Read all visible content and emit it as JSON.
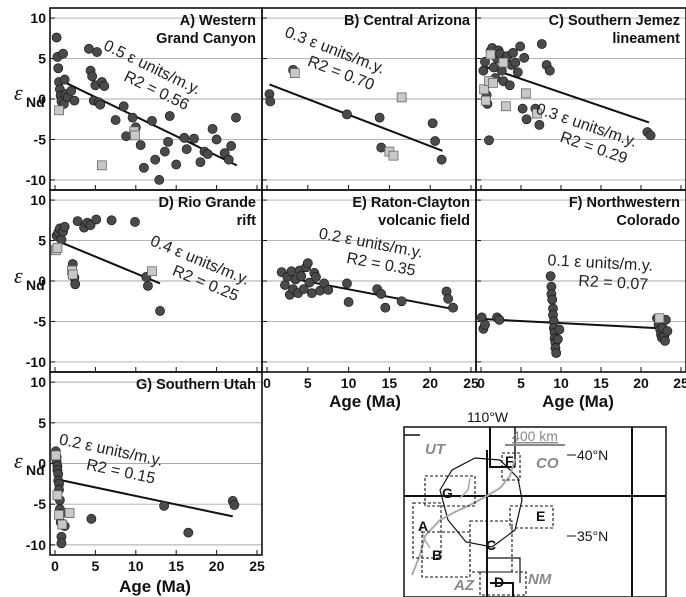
{
  "chart_data": [
    {
      "id": "A",
      "type": "scatter",
      "title": [
        "A) Western",
        "Grand Canyon"
      ],
      "annotation": [
        "0.5 ε units/m.y.",
        "R2 = 0.56"
      ],
      "xlim": [
        0,
        25
      ],
      "ylim": [
        -11,
        11
      ],
      "trend": [
        [
          0.5,
          2.4
        ],
        [
          22.5,
          -8.2
        ]
      ],
      "circles": [
        [
          0.2,
          7.6
        ],
        [
          0.3,
          5.2
        ],
        [
          0.4,
          3.8
        ],
        [
          0.5,
          2.1
        ],
        [
          0.6,
          1.2
        ],
        [
          0.7,
          0.4
        ],
        [
          0.8,
          -0.3
        ],
        [
          1.0,
          5.6
        ],
        [
          1.1,
          -0.6
        ],
        [
          1.2,
          2.4
        ],
        [
          1.3,
          0.6
        ],
        [
          1.6,
          0.2
        ],
        [
          2.0,
          1.0
        ],
        [
          2.4,
          -0.2
        ],
        [
          4.2,
          6.2
        ],
        [
          4.4,
          3.5
        ],
        [
          4.6,
          2.8
        ],
        [
          4.8,
          -0.2
        ],
        [
          5.0,
          1.7
        ],
        [
          5.2,
          5.8
        ],
        [
          5.4,
          -0.4
        ],
        [
          5.6,
          -0.7
        ],
        [
          5.8,
          2.1
        ],
        [
          6.1,
          1.6
        ],
        [
          7.5,
          -2.6
        ],
        [
          8.5,
          -0.9
        ],
        [
          8.8,
          -4.6
        ],
        [
          9.6,
          -2.3
        ],
        [
          10.0,
          -3.5
        ],
        [
          10.6,
          -5.7
        ],
        [
          11.0,
          -8.5
        ],
        [
          12.0,
          -2.7
        ],
        [
          12.4,
          -7.5
        ],
        [
          12.9,
          -10.0
        ],
        [
          13.6,
          -6.5
        ],
        [
          14.0,
          -5.3
        ],
        [
          14.2,
          -2.1
        ],
        [
          15.0,
          -8.1
        ],
        [
          16.0,
          -4.8
        ],
        [
          16.3,
          -6.2
        ],
        [
          17.2,
          -4.9
        ],
        [
          18.0,
          -7.8
        ],
        [
          18.5,
          -6.5
        ],
        [
          18.9,
          -6.8
        ],
        [
          19.5,
          -3.7
        ],
        [
          20.0,
          -5.0
        ],
        [
          21.0,
          -6.7
        ],
        [
          21.5,
          -7.5
        ],
        [
          21.8,
          -5.8
        ],
        [
          22.4,
          -2.3
        ]
      ],
      "squares": [
        [
          0.5,
          -1.4
        ],
        [
          5.8,
          -8.2
        ],
        [
          9.8,
          -4.0
        ],
        [
          9.9,
          -4.5
        ]
      ]
    },
    {
      "id": "B",
      "type": "scatter",
      "title": [
        "B) Central Arizona"
      ],
      "annotation": [
        "0.3 ε units/m.y.",
        "R2 = 0.70"
      ],
      "xlim": [
        0,
        25
      ],
      "ylim": [
        -11,
        11
      ],
      "trend": [
        [
          0.3,
          1.8
        ],
        [
          21.5,
          -6.4
        ]
      ],
      "circles": [
        [
          0.3,
          0.6
        ],
        [
          0.4,
          -0.3
        ],
        [
          3.2,
          3.6
        ],
        [
          9.8,
          -1.9
        ],
        [
          13.8,
          -2.3
        ],
        [
          14.0,
          -6.0
        ],
        [
          20.3,
          -3.0
        ],
        [
          20.6,
          -5.2
        ],
        [
          21.4,
          -7.5
        ]
      ],
      "squares": [
        [
          3.4,
          3.2
        ],
        [
          15.0,
          -6.5
        ],
        [
          15.5,
          -7.0
        ],
        [
          16.5,
          0.2
        ]
      ]
    },
    {
      "id": "C",
      "type": "scatter",
      "title": [
        "C) Southern Jemez",
        "lineament"
      ],
      "annotation": [
        "0.3 ε units/m.y.",
        "R2 = 0.29"
      ],
      "xlim": [
        0,
        25
      ],
      "ylim": [
        -11,
        11
      ],
      "trend": [
        [
          0.5,
          4.0
        ],
        [
          21.0,
          -2.9
        ]
      ],
      "circles": [
        [
          0.3,
          3.5
        ],
        [
          0.5,
          4.6
        ],
        [
          0.7,
          0.5
        ],
        [
          0.8,
          -0.6
        ],
        [
          1.0,
          -5.1
        ],
        [
          1.2,
          5.9
        ],
        [
          1.4,
          6.3
        ],
        [
          1.6,
          3.9
        ],
        [
          1.8,
          2.6
        ],
        [
          2.0,
          5.0
        ],
        [
          2.2,
          6.0
        ],
        [
          2.4,
          5.6
        ],
        [
          2.6,
          3.5
        ],
        [
          2.8,
          2.2
        ],
        [
          3.0,
          4.9
        ],
        [
          3.3,
          5.3
        ],
        [
          3.6,
          1.7
        ],
        [
          3.8,
          4.2
        ],
        [
          4.0,
          5.7
        ],
        [
          4.3,
          4.5
        ],
        [
          4.6,
          3.3
        ],
        [
          4.9,
          6.5
        ],
        [
          5.2,
          -1.2
        ],
        [
          5.4,
          5.1
        ],
        [
          5.7,
          -2.5
        ],
        [
          6.8,
          -1.2
        ],
        [
          7.3,
          -3.2
        ],
        [
          7.6,
          6.8
        ],
        [
          8.2,
          4.2
        ],
        [
          8.6,
          3.5
        ],
        [
          20.8,
          -4.1
        ],
        [
          21.2,
          -4.5
        ]
      ],
      "squares": [
        [
          0.4,
          1.2
        ],
        [
          0.6,
          -0.2
        ],
        [
          1.0,
          2.2
        ],
        [
          1.2,
          5.5
        ],
        [
          1.5,
          2.0
        ],
        [
          2.8,
          4.5
        ],
        [
          3.1,
          -0.9
        ],
        [
          5.6,
          0.7
        ],
        [
          7.0,
          -1.8
        ]
      ]
    },
    {
      "id": "D",
      "type": "scatter",
      "title": [
        "D) Rio Grande",
        "rift"
      ],
      "annotation": [
        "0.4 ε units/m.y.",
        "R2 = 0.25"
      ],
      "xlim": [
        0,
        25
      ],
      "ylim": [
        -11,
        11
      ],
      "trend": [
        [
          0.2,
          5.0
        ],
        [
          13.0,
          -0.3
        ]
      ],
      "circles": [
        [
          0.2,
          5.6
        ],
        [
          0.4,
          6.0
        ],
        [
          0.6,
          6.5
        ],
        [
          0.8,
          5.1
        ],
        [
          1.0,
          6.1
        ],
        [
          1.2,
          6.7
        ],
        [
          2.2,
          2.1
        ],
        [
          2.4,
          0.4
        ],
        [
          2.5,
          -0.4
        ],
        [
          2.8,
          7.4
        ],
        [
          3.6,
          6.6
        ],
        [
          4.0,
          7.2
        ],
        [
          4.4,
          6.9
        ],
        [
          5.1,
          7.6
        ],
        [
          7.0,
          7.5
        ],
        [
          9.9,
          7.3
        ],
        [
          11.3,
          0.5
        ],
        [
          11.5,
          -0.6
        ],
        [
          13.0,
          -3.7
        ]
      ],
      "squares": [
        [
          0.1,
          3.8
        ],
        [
          0.3,
          4.1
        ],
        [
          2.1,
          1.3
        ],
        [
          2.2,
          0.8
        ],
        [
          12.0,
          1.2
        ]
      ]
    },
    {
      "id": "E",
      "type": "scatter",
      "title": [
        "E) Raton-Clayton",
        "volcanic field"
      ],
      "annotation": [
        "0.2 ε units/m.y.",
        "R2 = 0.35"
      ],
      "xlim": [
        0,
        25
      ],
      "ylim": [
        -11,
        11
      ],
      "trend": [
        [
          2.0,
          0.5
        ],
        [
          23.0,
          -3.5
        ]
      ],
      "circles": [
        [
          1.8,
          1.1
        ],
        [
          2.2,
          -0.5
        ],
        [
          2.5,
          0.5
        ],
        [
          2.8,
          -1.7
        ],
        [
          3.0,
          1.2
        ],
        [
          3.2,
          -1.0
        ],
        [
          3.5,
          0.2
        ],
        [
          3.8,
          -1.5
        ],
        [
          4.0,
          1.3
        ],
        [
          4.2,
          0.6
        ],
        [
          4.5,
          -1.0
        ],
        [
          4.8,
          1.7
        ],
        [
          5.0,
          2.2
        ],
        [
          5.2,
          -0.2
        ],
        [
          5.5,
          -1.5
        ],
        [
          5.8,
          1.0
        ],
        [
          6.0,
          0.5
        ],
        [
          6.5,
          -1.2
        ],
        [
          7.0,
          -0.3
        ],
        [
          7.5,
          -1.1
        ],
        [
          9.8,
          -0.3
        ],
        [
          10.0,
          -2.6
        ],
        [
          13.5,
          -1.0
        ],
        [
          14.0,
          -1.6
        ],
        [
          14.5,
          -3.3
        ],
        [
          16.5,
          -2.5
        ],
        [
          22.0,
          -1.3
        ],
        [
          22.2,
          -2.2
        ],
        [
          22.8,
          -3.3
        ]
      ],
      "squares": []
    },
    {
      "id": "F",
      "type": "scatter",
      "title": [
        "F) Northwestern",
        "Colorado"
      ],
      "annotation": [
        "0.1 ε units/m.y.",
        "R2 = 0.07"
      ],
      "xlim": [
        0,
        25
      ],
      "ylim": [
        -11,
        11
      ],
      "trend": [
        [
          0.2,
          -4.7
        ],
        [
          23.5,
          -5.9
        ]
      ],
      "circles": [
        [
          0.1,
          -4.5
        ],
        [
          0.3,
          -5.9
        ],
        [
          0.5,
          -5.4
        ],
        [
          2.0,
          -4.5
        ],
        [
          2.3,
          -4.8
        ],
        [
          8.7,
          0.6
        ],
        [
          8.8,
          -0.7
        ],
        [
          8.8,
          -1.6
        ],
        [
          8.9,
          -2.3
        ],
        [
          9.0,
          -3.4
        ],
        [
          9.0,
          -4.2
        ],
        [
          9.1,
          -5.0
        ],
        [
          9.1,
          -5.8
        ],
        [
          9.2,
          -6.4
        ],
        [
          9.2,
          -7.1
        ],
        [
          9.3,
          -7.6
        ],
        [
          9.3,
          -8.3
        ],
        [
          9.4,
          -8.9
        ],
        [
          9.6,
          -7.2
        ],
        [
          9.8,
          -6.0
        ],
        [
          22.0,
          -4.6
        ],
        [
          22.2,
          -5.4
        ],
        [
          22.4,
          -6.0
        ],
        [
          22.5,
          -6.6
        ],
        [
          22.6,
          -7.0
        ],
        [
          22.7,
          -5.8
        ],
        [
          22.9,
          -6.8
        ],
        [
          23.0,
          -7.4
        ],
        [
          23.1,
          -4.8
        ],
        [
          23.3,
          -6.2
        ]
      ],
      "squares": [
        [
          22.3,
          -4.6
        ]
      ]
    },
    {
      "id": "G",
      "type": "scatter",
      "title": [
        "G) Southern Utah"
      ],
      "annotation": [
        "0.2 ε units/m.y.",
        "R2 = 0.15"
      ],
      "xlim": [
        0,
        25
      ],
      "ylim": [
        -11,
        11
      ],
      "trend": [
        [
          0.5,
          -2.0
        ],
        [
          22.0,
          -6.5
        ]
      ],
      "circles": [
        [
          0.1,
          1.5
        ],
        [
          0.2,
          0.8
        ],
        [
          0.2,
          0.2
        ],
        [
          0.3,
          -0.3
        ],
        [
          0.3,
          -0.8
        ],
        [
          0.4,
          -1.3
        ],
        [
          0.4,
          -2.1
        ],
        [
          0.5,
          -2.5
        ],
        [
          0.5,
          -3.2
        ],
        [
          0.6,
          -4.5
        ],
        [
          0.6,
          -5.6
        ],
        [
          0.7,
          -6.2
        ],
        [
          0.7,
          -7.2
        ],
        [
          0.8,
          -9.0
        ],
        [
          0.8,
          -9.8
        ],
        [
          1.2,
          -7.7
        ],
        [
          4.5,
          -6.8
        ],
        [
          13.5,
          -5.2
        ],
        [
          16.5,
          -8.5
        ],
        [
          22.0,
          -4.6
        ],
        [
          22.2,
          -5.1
        ]
      ],
      "squares": [
        [
          0.1,
          1.0
        ],
        [
          0.3,
          -3.9
        ],
        [
          0.5,
          -6.3
        ],
        [
          0.9,
          -7.5
        ],
        [
          1.8,
          -6.1
        ]
      ]
    }
  ],
  "axes": {
    "ylabel_main": "ε",
    "ylabel_sub": "Nd",
    "xlabel": "Age (Ma)",
    "yticks": [
      "10",
      "5",
      "0",
      "-5",
      "-10"
    ],
    "xticks": [
      "0",
      "5",
      "10",
      "15",
      "20",
      "25"
    ]
  },
  "map": {
    "lon_label": "110°W",
    "lat_labels": [
      "40°N",
      "35°N"
    ],
    "scale_label": "400 km",
    "states": [
      "UT",
      "CO",
      "AZ",
      "NM"
    ],
    "region_labels": [
      "A",
      "B",
      "C",
      "D",
      "E",
      "F",
      "G"
    ]
  },
  "colors": {
    "circle_fill": "#4a4a4a",
    "square_fill": "#c8c8c8",
    "trend": "#111111",
    "grid": "#aaaaaa"
  }
}
